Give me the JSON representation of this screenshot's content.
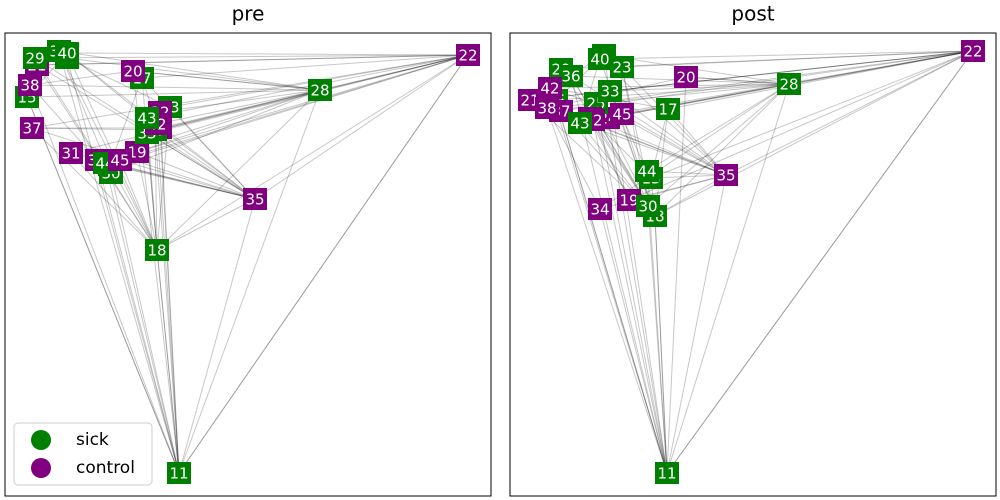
{
  "panels": [
    {
      "title": "pre"
    },
    {
      "title": "post"
    }
  ],
  "legend": [
    {
      "name": "sick",
      "color": "green"
    },
    {
      "name": "control",
      "color": "purple"
    }
  ],
  "nodes": [
    {
      "label": "11",
      "group": "sick"
    },
    {
      "label": "12",
      "group": "sick"
    },
    {
      "label": "13",
      "group": "sick"
    },
    {
      "label": "15",
      "group": "sick"
    },
    {
      "label": "17",
      "group": "sick"
    },
    {
      "label": "18",
      "group": "sick"
    },
    {
      "label": "19",
      "group": "control"
    },
    {
      "label": "20",
      "group": "control"
    },
    {
      "label": "21",
      "group": "control"
    },
    {
      "label": "22",
      "group": "control"
    },
    {
      "label": "23",
      "group": "sick"
    },
    {
      "label": "24",
      "group": "control"
    },
    {
      "label": "25",
      "group": "sick"
    },
    {
      "label": "28",
      "group": "sick"
    },
    {
      "label": "29",
      "group": "sick"
    },
    {
      "label": "30",
      "group": "sick"
    },
    {
      "label": "31",
      "group": "control"
    },
    {
      "label": "32",
      "group": "control"
    },
    {
      "label": "33",
      "group": "sick"
    },
    {
      "label": "34",
      "group": "control"
    },
    {
      "label": "35",
      "group": "control"
    },
    {
      "label": "36",
      "group": "sick"
    },
    {
      "label": "37",
      "group": "control"
    },
    {
      "label": "38",
      "group": "control"
    },
    {
      "label": "40",
      "group": "sick"
    },
    {
      "label": "42",
      "group": "control"
    },
    {
      "label": "43",
      "group": "sick"
    },
    {
      "label": "44",
      "group": "sick"
    },
    {
      "label": "45",
      "group": "control"
    }
  ]
}
